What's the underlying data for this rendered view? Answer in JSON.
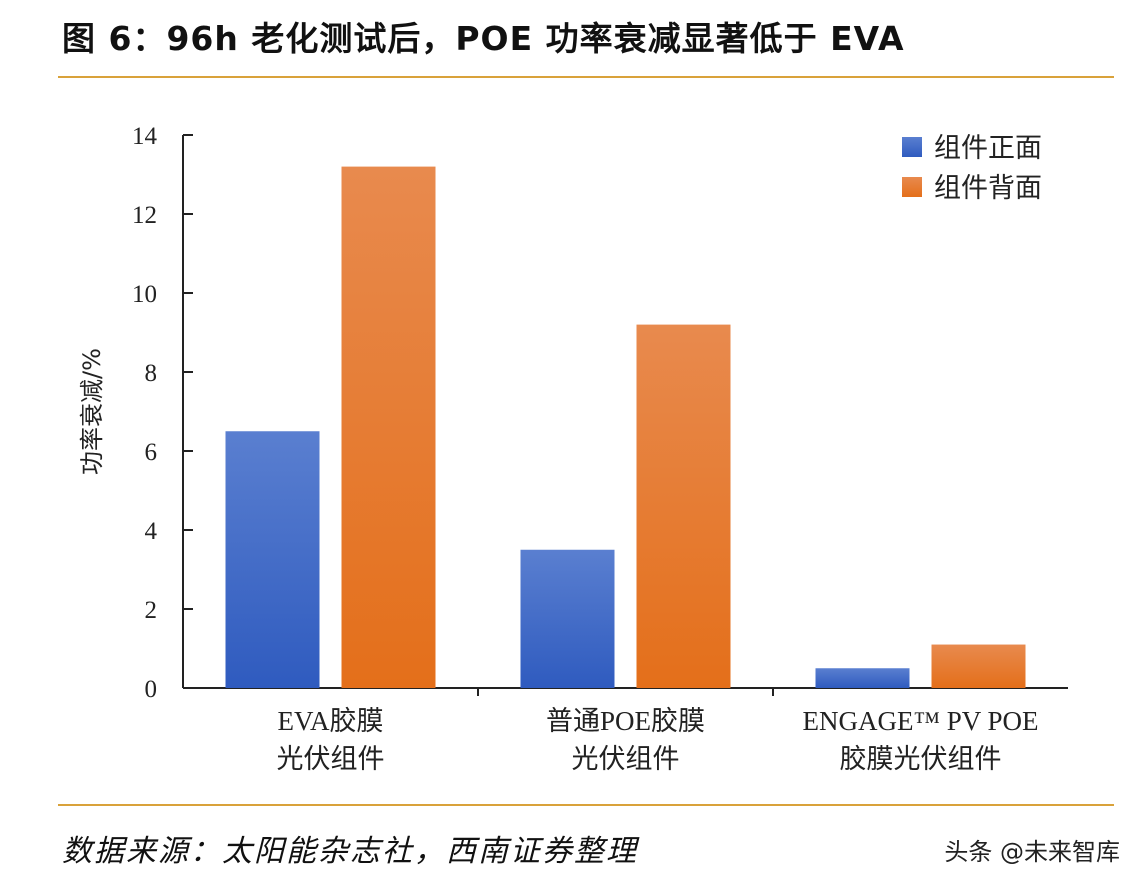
{
  "title": "图 6：96h 老化测试后，POE 功率衰减显著低于 EVA",
  "footer": "数据来源：太阳能杂志社，西南证券整理",
  "watermark": "头条 @未来智库",
  "colors": {
    "front": "#3a66c4",
    "back": "#e8792a",
    "rule": "#d9a23a"
  },
  "chart_data": {
    "type": "bar",
    "title": "",
    "xlabel": "",
    "ylabel": "功率衰减/%",
    "ylim": [
      0,
      14
    ],
    "yticks": [
      0,
      2,
      4,
      6,
      8,
      10,
      12,
      14
    ],
    "grid": false,
    "legend_position": "top-right",
    "categories": [
      [
        "EVA胶膜",
        "光伏组件"
      ],
      [
        "普通POE胶膜",
        "光伏组件"
      ],
      [
        "ENGAGE™ PV POE",
        "胶膜光伏组件"
      ]
    ],
    "series": [
      {
        "name": "组件正面",
        "color": "#3a66c4",
        "values": [
          6.5,
          3.5,
          0.5
        ]
      },
      {
        "name": "组件背面",
        "color": "#e8792a",
        "values": [
          13.2,
          9.2,
          1.1
        ]
      }
    ]
  }
}
